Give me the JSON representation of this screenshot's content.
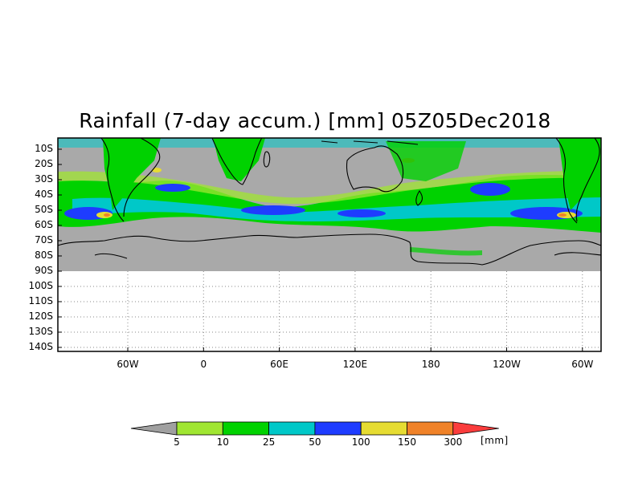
{
  "title": "Rainfall (7-day accum.) [mm] 05Z05Dec2018",
  "lat_labels": [
    "10S",
    "20S",
    "30S",
    "40S",
    "50S",
    "60S",
    "70S",
    "80S",
    "90S",
    "100S",
    "110S",
    "120S",
    "130S",
    "140S"
  ],
  "lon_labels": [
    "60W",
    "0",
    "60E",
    "120E",
    "180",
    "120W",
    "60W"
  ],
  "colorbar": {
    "unit": "[mm]",
    "levels": [
      "5",
      "10",
      "25",
      "50",
      "100",
      "150",
      "300"
    ],
    "colors": [
      "#a0a0a0",
      "#a0e632",
      "#00d200",
      "#00c8c8",
      "#1e3cff",
      "#e6dc32",
      "#f08228",
      "#fa3c3c"
    ]
  },
  "colors": {
    "no_rain": "#a9a9a9",
    "coast": "#000000"
  }
}
